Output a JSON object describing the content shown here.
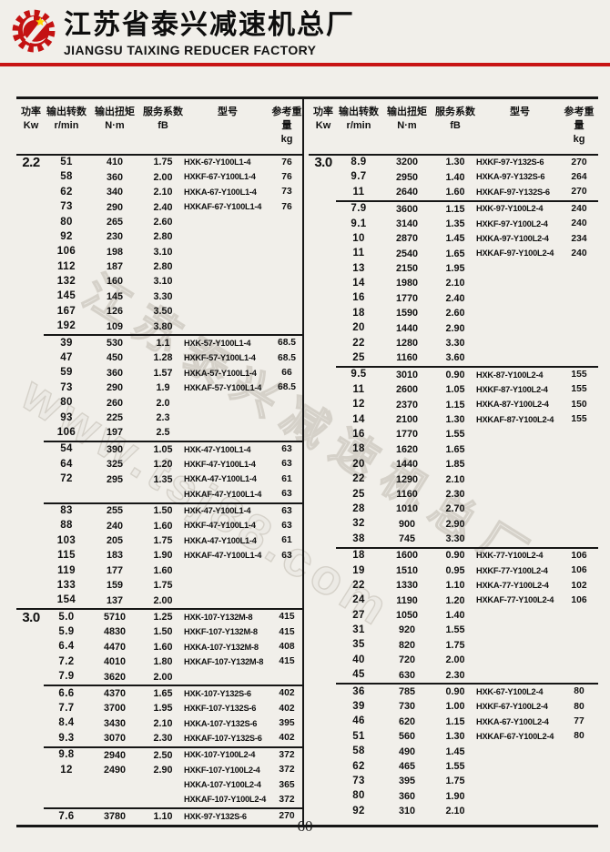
{
  "header": {
    "company_cn": "江苏省泰兴减速机总厂",
    "company_en": "JIANGSU TAIXING REDUCER FACTORY",
    "accent_red": "#c81414"
  },
  "watermark": {
    "line1": "江苏泰兴减速机总厂",
    "line2": "www.tsj88.com"
  },
  "columns": [
    {
      "cn": "功率",
      "unit": "Kw"
    },
    {
      "cn": "输出转数",
      "unit": "r/min"
    },
    {
      "cn": "输出扭矩",
      "unit": "N·m"
    },
    {
      "cn": "服务系数",
      "unit": "fB"
    },
    {
      "cn": "型号",
      "unit": ""
    },
    {
      "cn": "参考重量",
      "unit": "kg"
    }
  ],
  "tables": [
    {
      "id": "left",
      "sections": [
        {
          "power": "2.2",
          "divider": "none",
          "rows": [
            [
              "51",
              "410",
              "1.75",
              "HXK-67-Y100L1-4",
              "76"
            ],
            [
              "58",
              "360",
              "2.00",
              "HXKF-67-Y100L1-4",
              "76"
            ],
            [
              "62",
              "340",
              "2.10",
              "HXKA-67-Y100L1-4",
              "73"
            ],
            [
              "73",
              "290",
              "2.40",
              "HXKAF-67-Y100L1-4",
              "76"
            ],
            [
              "80",
              "265",
              "2.60",
              "",
              ""
            ],
            [
              "92",
              "230",
              "2.80",
              "",
              ""
            ],
            [
              "106",
              "198",
              "3.10",
              "",
              ""
            ],
            [
              "112",
              "187",
              "2.80",
              "",
              ""
            ],
            [
              "132",
              "160",
              "3.10",
              "",
              ""
            ],
            [
              "145",
              "145",
              "3.30",
              "",
              ""
            ],
            [
              "167",
              "126",
              "3.50",
              "",
              ""
            ],
            [
              "192",
              "109",
              "3.80",
              "",
              ""
            ]
          ]
        },
        {
          "power": "",
          "divider": "minor",
          "rows": [
            [
              "39",
              "530",
              "1.1",
              "HXK-57-Y100L1-4",
              "68.5"
            ],
            [
              "47",
              "450",
              "1.28",
              "HXKF-57-Y100L1-4",
              "68.5"
            ],
            [
              "59",
              "360",
              "1.57",
              "HXKA-57-Y100L1-4",
              "66"
            ],
            [
              "73",
              "290",
              "1.9",
              "HXKAF-57-Y100L1-4",
              "68.5"
            ],
            [
              "80",
              "260",
              "2.0",
              "",
              ""
            ],
            [
              "93",
              "225",
              "2.3",
              "",
              ""
            ],
            [
              "106",
              "197",
              "2.5",
              "",
              ""
            ]
          ]
        },
        {
          "power": "",
          "divider": "minor",
          "rows": [
            [
              "54",
              "390",
              "1.05",
              "HXK-47-Y100L1-4",
              "63"
            ],
            [
              "64",
              "325",
              "1.20",
              "HXKF-47-Y100L1-4",
              "63"
            ],
            [
              "72",
              "295",
              "1.35",
              "HXKA-47-Y100L1-4",
              "61"
            ],
            [
              "",
              "",
              "",
              "HXKAF-47-Y100L1-4",
              "63"
            ]
          ]
        },
        {
          "power": "",
          "divider": "minor",
          "rows": [
            [
              "83",
              "255",
              "1.50",
              "HXK-47-Y100L1-4",
              "63"
            ],
            [
              "88",
              "240",
              "1.60",
              "HXKF-47-Y100L1-4",
              "63"
            ],
            [
              "103",
              "205",
              "1.75",
              "HXKA-47-Y100L1-4",
              "61"
            ],
            [
              "115",
              "183",
              "1.90",
              "HXKAF-47-Y100L1-4",
              "63"
            ],
            [
              "119",
              "177",
              "1.60",
              "",
              ""
            ],
            [
              "133",
              "159",
              "1.75",
              "",
              ""
            ],
            [
              "154",
              "137",
              "2.00",
              "",
              ""
            ]
          ]
        },
        {
          "power": "3.0",
          "divider": "major",
          "rows": [
            [
              "5.0",
              "5710",
              "1.25",
              "HXK-107-Y132M-8",
              "415"
            ],
            [
              "5.9",
              "4830",
              "1.50",
              "HXKF-107-Y132M-8",
              "415"
            ],
            [
              "6.4",
              "4470",
              "1.60",
              "HXKA-107-Y132M-8",
              "408"
            ],
            [
              "7.2",
              "4010",
              "1.80",
              "HXKAF-107-Y132M-8",
              "415"
            ],
            [
              "7.9",
              "3620",
              "2.00",
              "",
              ""
            ]
          ]
        },
        {
          "power": "",
          "divider": "minor",
          "rows": [
            [
              "6.6",
              "4370",
              "1.65",
              "HXK-107-Y132S-6",
              "402"
            ],
            [
              "7.7",
              "3700",
              "1.95",
              "HXKF-107-Y132S-6",
              "402"
            ],
            [
              "8.4",
              "3430",
              "2.10",
              "HXKA-107-Y132S-6",
              "395"
            ],
            [
              "9.3",
              "3070",
              "2.30",
              "HXKAF-107-Y132S-6",
              "402"
            ]
          ]
        },
        {
          "power": "",
          "divider": "minor",
          "rows": [
            [
              "9.8",
              "2940",
              "2.50",
              "HXK-107-Y100L2-4",
              "372"
            ],
            [
              "12",
              "2490",
              "2.90",
              "HXKF-107-Y100L2-4",
              "372"
            ],
            [
              "",
              "",
              "",
              "HXKA-107-Y100L2-4",
              "365"
            ],
            [
              "",
              "",
              "",
              "HXKAF-107-Y100L2-4",
              "372"
            ]
          ]
        },
        {
          "power": "",
          "divider": "minor",
          "rows": [
            [
              "7.6",
              "3780",
              "1.10",
              "HXK-97-Y132S-6",
              "270"
            ]
          ]
        }
      ]
    },
    {
      "id": "right",
      "sections": [
        {
          "power": "3.0",
          "divider": "none",
          "rows": [
            [
              "8.9",
              "3200",
              "1.30",
              "HXKF-97-Y132S-6",
              "270"
            ],
            [
              "9.7",
              "2950",
              "1.40",
              "HXKA-97-Y132S-6",
              "264"
            ],
            [
              "11",
              "2640",
              "1.60",
              "HXKAF-97-Y132S-6",
              "270"
            ]
          ]
        },
        {
          "power": "",
          "divider": "minor",
          "rows": [
            [
              "7.9",
              "3600",
              "1.15",
              "HXK-97-Y100L2-4",
              "240"
            ],
            [
              "9.1",
              "3140",
              "1.35",
              "HXKF-97-Y100L2-4",
              "240"
            ],
            [
              "10",
              "2870",
              "1.45",
              "HXKA-97-Y100L2-4",
              "234"
            ],
            [
              "11",
              "2540",
              "1.65",
              "HXKAF-97-Y100L2-4",
              "240"
            ],
            [
              "13",
              "2150",
              "1.95",
              "",
              ""
            ],
            [
              "14",
              "1980",
              "2.10",
              "",
              ""
            ],
            [
              "16",
              "1770",
              "2.40",
              "",
              ""
            ],
            [
              "18",
              "1590",
              "2.60",
              "",
              ""
            ],
            [
              "20",
              "1440",
              "2.90",
              "",
              ""
            ],
            [
              "22",
              "1280",
              "3.30",
              "",
              ""
            ],
            [
              "25",
              "1160",
              "3.60",
              "",
              ""
            ]
          ]
        },
        {
          "power": "",
          "divider": "minor",
          "rows": [
            [
              "9.5",
              "3010",
              "0.90",
              "HXK-87-Y100L2-4",
              "155"
            ],
            [
              "11",
              "2600",
              "1.05",
              "HXKF-87-Y100L2-4",
              "155"
            ],
            [
              "12",
              "2370",
              "1.15",
              "HXKA-87-Y100L2-4",
              "150"
            ],
            [
              "14",
              "2100",
              "1.30",
              "HXKAF-87-Y100L2-4",
              "155"
            ],
            [
              "16",
              "1770",
              "1.55",
              "",
              ""
            ],
            [
              "18",
              "1620",
              "1.65",
              "",
              ""
            ],
            [
              "20",
              "1440",
              "1.85",
              "",
              ""
            ],
            [
              "22",
              "1290",
              "2.10",
              "",
              ""
            ],
            [
              "25",
              "1160",
              "2.30",
              "",
              ""
            ],
            [
              "28",
              "1010",
              "2.70",
              "",
              ""
            ],
            [
              "32",
              "900",
              "2.90",
              "",
              ""
            ],
            [
              "38",
              "745",
              "3.30",
              "",
              ""
            ]
          ]
        },
        {
          "power": "",
          "divider": "minor",
          "rows": [
            [
              "18",
              "1600",
              "0.90",
              "HXK-77-Y100L2-4",
              "106"
            ],
            [
              "19",
              "1510",
              "0.95",
              "HXKF-77-Y100L2-4",
              "106"
            ],
            [
              "22",
              "1330",
              "1.10",
              "HXKA-77-Y100L2-4",
              "102"
            ],
            [
              "24",
              "1190",
              "1.20",
              "HXKAF-77-Y100L2-4",
              "106"
            ],
            [
              "27",
              "1050",
              "1.40",
              "",
              ""
            ],
            [
              "31",
              "920",
              "1.55",
              "",
              ""
            ],
            [
              "35",
              "820",
              "1.75",
              "",
              ""
            ],
            [
              "40",
              "720",
              "2.00",
              "",
              ""
            ],
            [
              "45",
              "630",
              "2.30",
              "",
              ""
            ]
          ]
        },
        {
          "power": "",
          "divider": "minor",
          "rows": [
            [
              "36",
              "785",
              "0.90",
              "HXK-67-Y100L2-4",
              "80"
            ],
            [
              "39",
              "730",
              "1.00",
              "HXKF-67-Y100L2-4",
              "80"
            ],
            [
              "46",
              "620",
              "1.15",
              "HXKA-67-Y100L2-4",
              "77"
            ],
            [
              "51",
              "560",
              "1.30",
              "HXKAF-67-Y100L2-4",
              "80"
            ],
            [
              "58",
              "490",
              "1.45",
              "",
              ""
            ],
            [
              "62",
              "465",
              "1.55",
              "",
              ""
            ],
            [
              "73",
              "395",
              "1.75",
              "",
              ""
            ],
            [
              "80",
              "360",
              "1.90",
              "",
              ""
            ],
            [
              "92",
              "310",
              "2.10",
              "",
              ""
            ]
          ]
        }
      ]
    }
  ],
  "footer": {
    "page_number": "60"
  }
}
